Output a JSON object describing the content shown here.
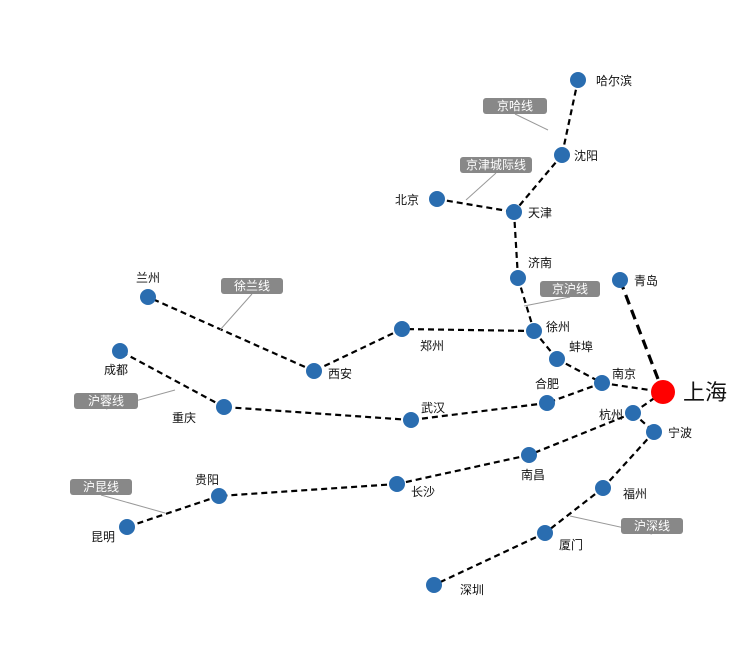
{
  "colors": {
    "node": "#2a6db0",
    "hub": "#ff0000",
    "tag": "#888888",
    "edge": "#000000"
  },
  "hub": "上海",
  "cities": [
    "哈尔滨",
    "沈阳",
    "天津",
    "北京",
    "济南",
    "徐州",
    "蚌埠",
    "南京",
    "上海",
    "青岛",
    "杭州",
    "宁波",
    "合肥",
    "武汉",
    "重庆",
    "成都",
    "西安",
    "郑州",
    "兰州",
    "南昌",
    "长沙",
    "贵阳",
    "昆明",
    "福州",
    "厦门",
    "深圳"
  ],
  "edges": [
    [
      "哈尔滨",
      "沈阳"
    ],
    [
      "沈阳",
      "天津"
    ],
    [
      "北京",
      "天津"
    ],
    [
      "天津",
      "济南"
    ],
    [
      "济南",
      "徐州"
    ],
    [
      "徐州",
      "蚌埠"
    ],
    [
      "蚌埠",
      "南京"
    ],
    [
      "南京",
      "上海"
    ],
    [
      "青岛",
      "上海"
    ],
    [
      "徐州",
      "郑州"
    ],
    [
      "郑州",
      "西安"
    ],
    [
      "西安",
      "兰州"
    ],
    [
      "南京",
      "合肥"
    ],
    [
      "合肥",
      "武汉"
    ],
    [
      "武汉",
      "重庆"
    ],
    [
      "重庆",
      "成都"
    ],
    [
      "上海",
      "杭州"
    ],
    [
      "杭州",
      "南昌"
    ],
    [
      "南昌",
      "长沙"
    ],
    [
      "长沙",
      "贵阳"
    ],
    [
      "贵阳",
      "昆明"
    ],
    [
      "杭州",
      "宁波"
    ],
    [
      "宁波",
      "福州"
    ],
    [
      "福州",
      "厦门"
    ],
    [
      "厦门",
      "深圳"
    ]
  ],
  "line_tags": [
    "京哈线",
    "京津城际线",
    "京沪线",
    "徐兰线",
    "沪蓉线",
    "沪昆线",
    "沪深线"
  ]
}
